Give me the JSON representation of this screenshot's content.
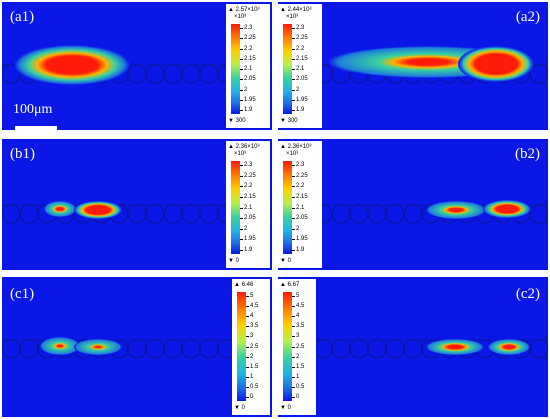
{
  "colors": {
    "background": "#0a17e6",
    "hot": "#ff1a0a",
    "warm": "#ffb300",
    "mid": "#37d2a0",
    "cool": "#1e7ddc"
  },
  "scale_bar_label": "100μm",
  "panels": [
    {
      "id": "a1",
      "label": "(a1)"
    },
    {
      "id": "a2",
      "label": "(a2)"
    },
    {
      "id": "b1",
      "label": "(b1)"
    },
    {
      "id": "b2",
      "label": "(b2)"
    },
    {
      "id": "c1",
      "label": "(c1)"
    },
    {
      "id": "c2",
      "label": "(c2)"
    }
  ],
  "legends": [
    {
      "id": "a1",
      "max": "2.57×10³",
      "multiplier": "×10³",
      "ticks": [
        "2.3",
        "2.25",
        "2.2",
        "2.15",
        "2.1",
        "2.05",
        "2",
        "1.95",
        "1.9"
      ],
      "min": "300"
    },
    {
      "id": "a2",
      "max": "2.44×10³",
      "multiplier": "×10³",
      "ticks": [
        "2.3",
        "2.25",
        "2.2",
        "2.15",
        "2.1",
        "2.05",
        "2",
        "1.95",
        "1.9"
      ],
      "min": "300"
    },
    {
      "id": "b1",
      "max": "2.36×10³",
      "multiplier": "×10³",
      "ticks": [
        "2.3",
        "2.25",
        "2.2",
        "2.15",
        "2.1",
        "2.05",
        "2",
        "1.95",
        "1.9"
      ],
      "min": "0"
    },
    {
      "id": "b2",
      "max": "2.36×10³",
      "multiplier": "×10³",
      "ticks": [
        "2.3",
        "2.25",
        "2.2",
        "2.15",
        "2.1",
        "2.05",
        "2",
        "1.95",
        "1.9"
      ],
      "min": "0"
    },
    {
      "id": "c1",
      "max": "6.46",
      "multiplier": "",
      "ticks": [
        "5",
        "4.5",
        "4",
        "3.5",
        "3",
        "2.5",
        "2",
        "1.5",
        "1",
        "0.5",
        "0"
      ],
      "min": "0"
    },
    {
      "id": "c2",
      "max": "6.67",
      "multiplier": "",
      "ticks": [
        "5",
        "4.5",
        "4",
        "3.5",
        "3",
        "2.5",
        "2",
        "1.5",
        "1",
        "0.5",
        "0"
      ],
      "min": "0"
    }
  ]
}
